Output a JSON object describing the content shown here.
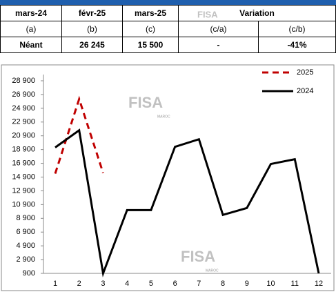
{
  "table": {
    "rows": [
      [
        "mars-24",
        "févr-25",
        "mars-25",
        "Variation"
      ],
      [
        "(a)",
        "(b)",
        "(c)",
        "(c/a)",
        "(c/b)"
      ],
      [
        "Néant",
        "26 245",
        "15 500",
        "-",
        "-41%"
      ]
    ]
  },
  "watermark": "FISA",
  "watermark_sub": "MAROC",
  "chart_data": {
    "type": "line",
    "categories": [
      "1",
      "2",
      "3",
      "4",
      "5",
      "6",
      "7",
      "8",
      "9",
      "10",
      "11",
      "12"
    ],
    "series": [
      {
        "name": "2025",
        "color": "#c00000",
        "dash": true,
        "values": [
          15400,
          26245,
          15500,
          null,
          null,
          null,
          null,
          null,
          null,
          null,
          null,
          null
        ]
      },
      {
        "name": "2024",
        "color": "#000000",
        "dash": false,
        "values": [
          19200,
          21700,
          900,
          10100,
          10100,
          19300,
          20400,
          9400,
          10400,
          16800,
          17500,
          900
        ]
      }
    ],
    "ylim": [
      900,
      28900
    ],
    "yticks": [
      {
        "value": 900,
        "label": "900"
      },
      {
        "value": 2900,
        "label": "2 900"
      },
      {
        "value": 4900,
        "label": "4 900"
      },
      {
        "value": 6900,
        "label": "6 900"
      },
      {
        "value": 8900,
        "label": "8 900"
      },
      {
        "value": 10900,
        "label": "10 900"
      },
      {
        "value": 12900,
        "label": "12 900"
      },
      {
        "value": 14900,
        "label": "14 900"
      },
      {
        "value": 16900,
        "label": "16 900"
      },
      {
        "value": 18900,
        "label": "18 900"
      },
      {
        "value": 20900,
        "label": "20 900"
      },
      {
        "value": 22900,
        "label": "22 900"
      },
      {
        "value": 24900,
        "label": "24 900"
      },
      {
        "value": 26900,
        "label": "26 900"
      },
      {
        "value": 28900,
        "label": "28 900"
      }
    ],
    "legend": "top-right",
    "grid": false
  }
}
